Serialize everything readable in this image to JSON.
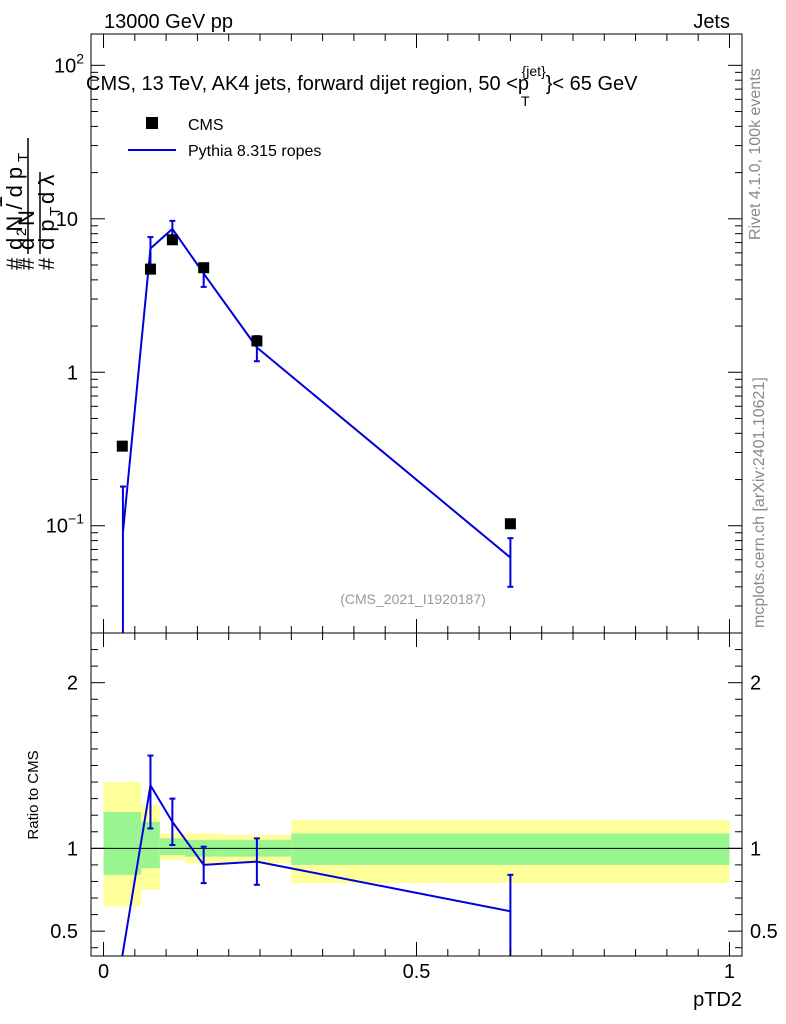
{
  "header": {
    "energy_label": "13000 GeV pp",
    "category_label": "Jets"
  },
  "sidebar": {
    "rivet_label": "Rivet 4.1.0,  100k events",
    "source_label": "mcplots.cern.ch [arXiv:2401.10621]"
  },
  "watermark": "(CMS_2021_I1920187)",
  "colors": {
    "mc": "#0000dd",
    "band_inner": "#99f58f",
    "band_outer": "#ffff99",
    "data": "#000000"
  },
  "chart_data": [
    {
      "type": "line",
      "panel": "main",
      "title": "CMS, 13 TeV, AK4 jets, forward dijet region, 50 <p",
      "title_sup": "{jet}",
      "title_sub": "T",
      "title_end": "}< 65 GeV",
      "ylabel": "1/dN/dp_T dN^2/dp_T dλ",
      "xlabel": "pTD2",
      "yscale": "log",
      "xlim": [
        -0.02,
        1.02
      ],
      "ylim": [
        0.02,
        160
      ],
      "y_tick_labels": [
        "10^-1",
        "1",
        "10",
        "10^2"
      ],
      "y_tick_values": [
        0.1,
        1,
        10,
        100
      ],
      "legend": [
        {
          "name": "CMS",
          "marker": "square"
        },
        {
          "name": "Pythia 8.315 ropes",
          "marker": "line"
        }
      ],
      "series": [
        {
          "name": "CMS",
          "x": [
            0.03,
            0.075,
            0.11,
            0.16,
            0.245,
            0.65
          ],
          "values": [
            0.33,
            4.7,
            7.3,
            4.8,
            1.6,
            0.103
          ]
        },
        {
          "name": "Pythia 8.315 ropes",
          "x": [
            0.031,
            0.075,
            0.11,
            0.16,
            0.245,
            0.65
          ],
          "values": [
            0.09,
            6.4,
            8.6,
            4.4,
            1.45,
            0.062
          ],
          "err_low": [
            0.0001,
            4.6,
            7.6,
            3.6,
            1.18,
            0.04
          ],
          "err_high": [
            0.18,
            7.6,
            9.7,
            5.1,
            1.72,
            0.083
          ]
        }
      ]
    },
    {
      "type": "line",
      "panel": "ratio",
      "ylabel": "Ratio to CMS",
      "xlabel": "pTD2",
      "xlim": [
        -0.02,
        1.02
      ],
      "ylim": [
        0.35,
        2.3
      ],
      "x_tick_labels": [
        "0",
        "0.5",
        "1"
      ],
      "x_tick_values": [
        0,
        0.5,
        1
      ],
      "y_tick_labels": [
        "0.5",
        "1",
        "2"
      ],
      "y_tick_values": [
        0.5,
        1,
        2
      ],
      "bins": [
        {
          "x0": 0.0,
          "x1": 0.06,
          "inner": [
            0.84,
            1.22
          ],
          "outer": [
            0.65,
            1.4
          ]
        },
        {
          "x0": 0.06,
          "x1": 0.09,
          "inner": [
            0.88,
            1.16
          ],
          "outer": [
            0.75,
            1.26
          ]
        },
        {
          "x0": 0.09,
          "x1": 0.13,
          "inner": [
            0.96,
            1.06
          ],
          "outer": [
            0.93,
            1.09
          ]
        },
        {
          "x0": 0.13,
          "x1": 0.19,
          "inner": [
            0.95,
            1.05
          ],
          "outer": [
            0.91,
            1.09
          ]
        },
        {
          "x0": 0.19,
          "x1": 0.3,
          "inner": [
            0.95,
            1.05
          ],
          "outer": [
            0.91,
            1.08
          ]
        },
        {
          "x0": 0.3,
          "x1": 1.0,
          "inner": [
            0.9,
            1.09
          ],
          "outer": [
            0.79,
            1.17
          ]
        }
      ],
      "series": [
        {
          "name": "Pythia 8.315 ropes",
          "x": [
            0.03,
            0.075,
            0.11,
            0.16,
            0.245,
            0.65
          ],
          "values": [
            0.27,
            1.38,
            1.16,
            0.9,
            0.92,
            0.62
          ],
          "err_low": [
            0.2,
            1.12,
            1.02,
            0.79,
            0.78,
            0.35
          ],
          "err_high": [
            0.4,
            1.56,
            1.3,
            1.01,
            1.06,
            0.84
          ]
        }
      ]
    }
  ]
}
